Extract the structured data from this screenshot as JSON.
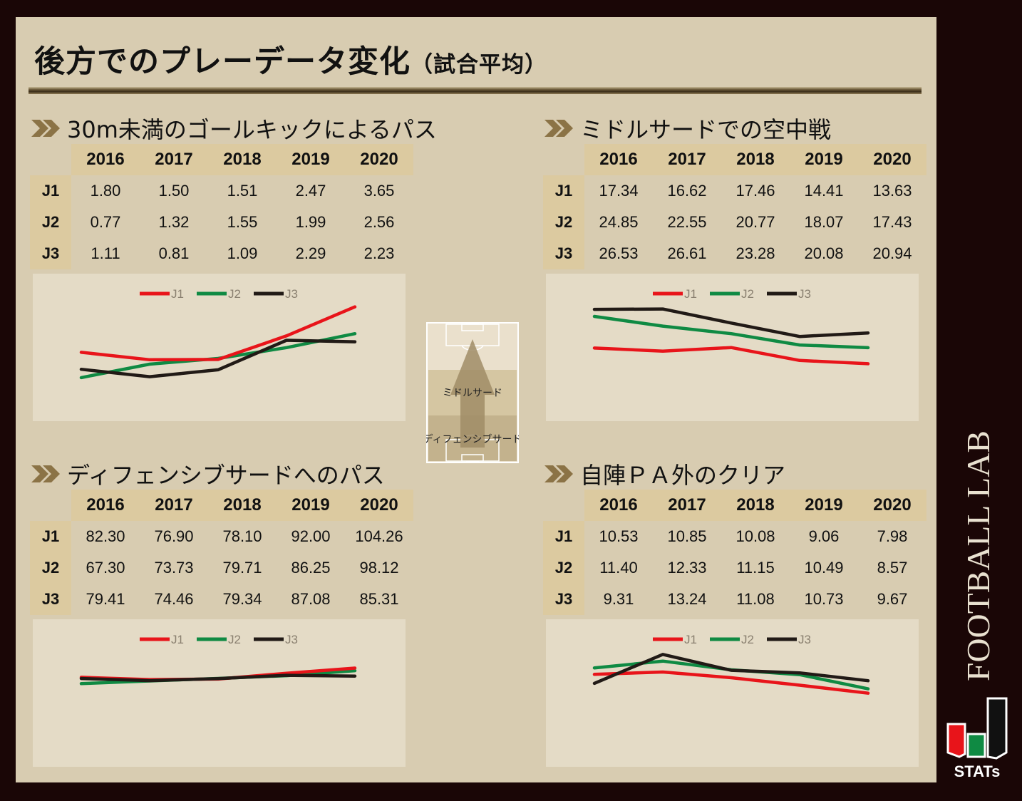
{
  "title": {
    "main": "後方でのプレーデータ変化",
    "sub": "（試合平均）"
  },
  "years": [
    "2016",
    "2017",
    "2018",
    "2019",
    "2020"
  ],
  "leagues": [
    "J1",
    "J2",
    "J3"
  ],
  "colors": {
    "J1": "#e8141a",
    "J2": "#0f8a43",
    "J3": "#211a16"
  },
  "field": {
    "zone_middle": "ミドルサード",
    "zone_defensive": "ディフェンシブサード"
  },
  "brand": {
    "name": "FOOTBALL LAB",
    "logo_text": "STATs"
  },
  "chart_data": [
    {
      "type": "line",
      "title": "30m未満のゴールキックによるパス",
      "categories": [
        "2016",
        "2017",
        "2018",
        "2019",
        "2020"
      ],
      "series": [
        {
          "name": "J1",
          "values": [
            1.8,
            1.5,
            1.51,
            2.47,
            3.65
          ]
        },
        {
          "name": "J2",
          "values": [
            0.77,
            1.32,
            1.55,
            1.99,
            2.56
          ]
        },
        {
          "name": "J3",
          "values": [
            1.11,
            0.81,
            1.09,
            2.29,
            2.23
          ]
        }
      ],
      "ylim": [
        -1,
        5
      ],
      "legend": "top-center",
      "grid": false
    },
    {
      "type": "line",
      "title": "ミドルサードでの空中戦",
      "categories": [
        "2016",
        "2017",
        "2018",
        "2019",
        "2020"
      ],
      "series": [
        {
          "name": "J1",
          "values": [
            17.34,
            16.62,
            17.46,
            14.41,
            13.63
          ]
        },
        {
          "name": "J2",
          "values": [
            24.85,
            22.55,
            20.77,
            18.07,
            17.43
          ]
        },
        {
          "name": "J3",
          "values": [
            26.53,
            26.61,
            23.28,
            20.08,
            20.94
          ]
        }
      ],
      "ylim": [
        0,
        35
      ],
      "legend": "top-center",
      "grid": false
    },
    {
      "type": "line",
      "title": "ディフェンシブサードへのパス",
      "categories": [
        "2016",
        "2017",
        "2018",
        "2019",
        "2020"
      ],
      "series": [
        {
          "name": "J1",
          "values": [
            82.3,
            76.9,
            78.1,
            92.0,
            104.26
          ]
        },
        {
          "name": "J2",
          "values": [
            67.3,
            73.73,
            79.71,
            86.25,
            98.12
          ]
        },
        {
          "name": "J3",
          "values": [
            79.41,
            74.46,
            79.34,
            87.08,
            85.31
          ]
        }
      ],
      "ylim": [
        -130,
        220
      ],
      "legend": "top-center",
      "grid": false
    },
    {
      "type": "line",
      "title": "自陣ＰＡ外のクリア",
      "categories": [
        "2016",
        "2017",
        "2018",
        "2019",
        "2020"
      ],
      "series": [
        {
          "name": "J1",
          "values": [
            10.53,
            10.85,
            10.08,
            9.06,
            7.98
          ]
        },
        {
          "name": "J2",
          "values": [
            11.4,
            12.33,
            11.15,
            10.49,
            8.57
          ]
        },
        {
          "name": "J3",
          "values": [
            9.31,
            13.24,
            11.08,
            10.73,
            9.67
          ]
        }
      ],
      "ylim": [
        -2,
        18
      ],
      "legend": "top-center",
      "grid": false
    }
  ]
}
